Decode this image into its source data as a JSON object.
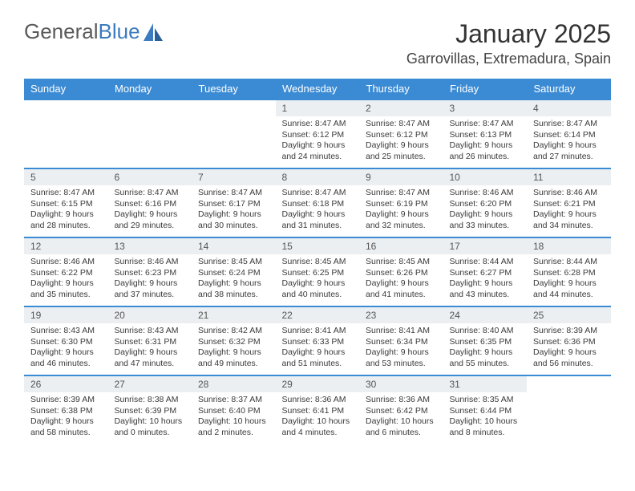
{
  "logo": {
    "text1": "General",
    "text2": "Blue"
  },
  "title": "January 2025",
  "location": "Garrovillas, Extremadura, Spain",
  "colors": {
    "header_bg": "#3b8bd4",
    "header_text": "#ffffff",
    "daynum_bg": "#eceff2",
    "border": "#3b8bd4",
    "logo_blue": "#3b7bbf"
  },
  "weekdays": [
    "Sunday",
    "Monday",
    "Tuesday",
    "Wednesday",
    "Thursday",
    "Friday",
    "Saturday"
  ],
  "weeks": [
    [
      {
        "n": "",
        "t": ""
      },
      {
        "n": "",
        "t": ""
      },
      {
        "n": "",
        "t": ""
      },
      {
        "n": "1",
        "t": "Sunrise: 8:47 AM\nSunset: 6:12 PM\nDaylight: 9 hours and 24 minutes."
      },
      {
        "n": "2",
        "t": "Sunrise: 8:47 AM\nSunset: 6:12 PM\nDaylight: 9 hours and 25 minutes."
      },
      {
        "n": "3",
        "t": "Sunrise: 8:47 AM\nSunset: 6:13 PM\nDaylight: 9 hours and 26 minutes."
      },
      {
        "n": "4",
        "t": "Sunrise: 8:47 AM\nSunset: 6:14 PM\nDaylight: 9 hours and 27 minutes."
      }
    ],
    [
      {
        "n": "5",
        "t": "Sunrise: 8:47 AM\nSunset: 6:15 PM\nDaylight: 9 hours and 28 minutes."
      },
      {
        "n": "6",
        "t": "Sunrise: 8:47 AM\nSunset: 6:16 PM\nDaylight: 9 hours and 29 minutes."
      },
      {
        "n": "7",
        "t": "Sunrise: 8:47 AM\nSunset: 6:17 PM\nDaylight: 9 hours and 30 minutes."
      },
      {
        "n": "8",
        "t": "Sunrise: 8:47 AM\nSunset: 6:18 PM\nDaylight: 9 hours and 31 minutes."
      },
      {
        "n": "9",
        "t": "Sunrise: 8:47 AM\nSunset: 6:19 PM\nDaylight: 9 hours and 32 minutes."
      },
      {
        "n": "10",
        "t": "Sunrise: 8:46 AM\nSunset: 6:20 PM\nDaylight: 9 hours and 33 minutes."
      },
      {
        "n": "11",
        "t": "Sunrise: 8:46 AM\nSunset: 6:21 PM\nDaylight: 9 hours and 34 minutes."
      }
    ],
    [
      {
        "n": "12",
        "t": "Sunrise: 8:46 AM\nSunset: 6:22 PM\nDaylight: 9 hours and 35 minutes."
      },
      {
        "n": "13",
        "t": "Sunrise: 8:46 AM\nSunset: 6:23 PM\nDaylight: 9 hours and 37 minutes."
      },
      {
        "n": "14",
        "t": "Sunrise: 8:45 AM\nSunset: 6:24 PM\nDaylight: 9 hours and 38 minutes."
      },
      {
        "n": "15",
        "t": "Sunrise: 8:45 AM\nSunset: 6:25 PM\nDaylight: 9 hours and 40 minutes."
      },
      {
        "n": "16",
        "t": "Sunrise: 8:45 AM\nSunset: 6:26 PM\nDaylight: 9 hours and 41 minutes."
      },
      {
        "n": "17",
        "t": "Sunrise: 8:44 AM\nSunset: 6:27 PM\nDaylight: 9 hours and 43 minutes."
      },
      {
        "n": "18",
        "t": "Sunrise: 8:44 AM\nSunset: 6:28 PM\nDaylight: 9 hours and 44 minutes."
      }
    ],
    [
      {
        "n": "19",
        "t": "Sunrise: 8:43 AM\nSunset: 6:30 PM\nDaylight: 9 hours and 46 minutes."
      },
      {
        "n": "20",
        "t": "Sunrise: 8:43 AM\nSunset: 6:31 PM\nDaylight: 9 hours and 47 minutes."
      },
      {
        "n": "21",
        "t": "Sunrise: 8:42 AM\nSunset: 6:32 PM\nDaylight: 9 hours and 49 minutes."
      },
      {
        "n": "22",
        "t": "Sunrise: 8:41 AM\nSunset: 6:33 PM\nDaylight: 9 hours and 51 minutes."
      },
      {
        "n": "23",
        "t": "Sunrise: 8:41 AM\nSunset: 6:34 PM\nDaylight: 9 hours and 53 minutes."
      },
      {
        "n": "24",
        "t": "Sunrise: 8:40 AM\nSunset: 6:35 PM\nDaylight: 9 hours and 55 minutes."
      },
      {
        "n": "25",
        "t": "Sunrise: 8:39 AM\nSunset: 6:36 PM\nDaylight: 9 hours and 56 minutes."
      }
    ],
    [
      {
        "n": "26",
        "t": "Sunrise: 8:39 AM\nSunset: 6:38 PM\nDaylight: 9 hours and 58 minutes."
      },
      {
        "n": "27",
        "t": "Sunrise: 8:38 AM\nSunset: 6:39 PM\nDaylight: 10 hours and 0 minutes."
      },
      {
        "n": "28",
        "t": "Sunrise: 8:37 AM\nSunset: 6:40 PM\nDaylight: 10 hours and 2 minutes."
      },
      {
        "n": "29",
        "t": "Sunrise: 8:36 AM\nSunset: 6:41 PM\nDaylight: 10 hours and 4 minutes."
      },
      {
        "n": "30",
        "t": "Sunrise: 8:36 AM\nSunset: 6:42 PM\nDaylight: 10 hours and 6 minutes."
      },
      {
        "n": "31",
        "t": "Sunrise: 8:35 AM\nSunset: 6:44 PM\nDaylight: 10 hours and 8 minutes."
      },
      {
        "n": "",
        "t": ""
      }
    ]
  ]
}
